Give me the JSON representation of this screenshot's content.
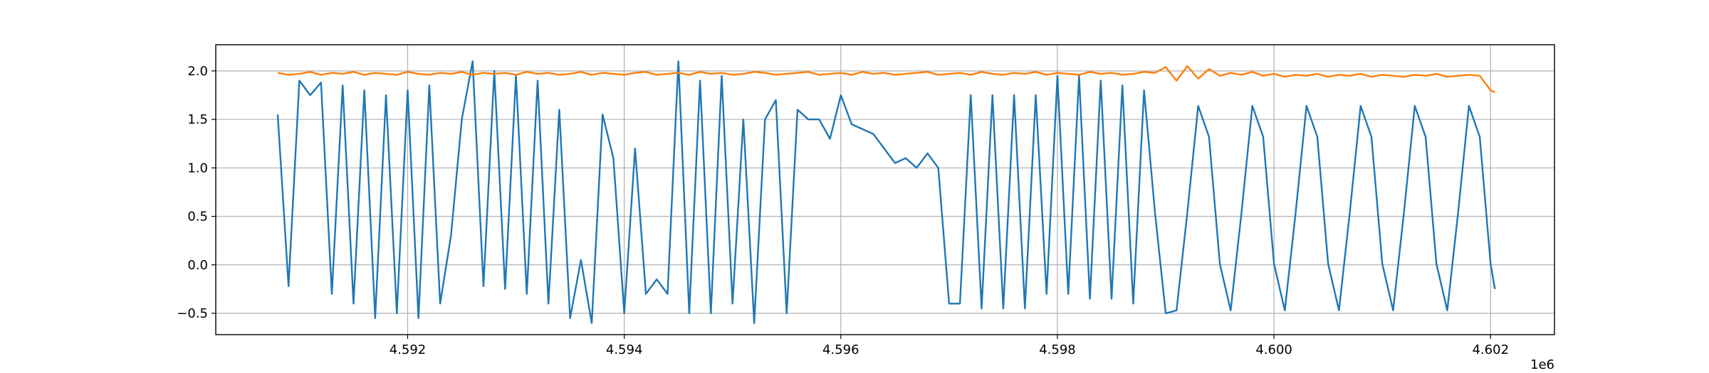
{
  "chart_data": {
    "type": "line",
    "x": [
      4590800,
      4590900,
      4591000,
      4591100,
      4591200,
      4591300,
      4591400,
      4591500,
      4591600,
      4591700,
      4591800,
      4591900,
      4592000,
      4592100,
      4592200,
      4592300,
      4592400,
      4592500,
      4592600,
      4592700,
      4592800,
      4592900,
      4593000,
      4593100,
      4593200,
      4593300,
      4593400,
      4593500,
      4593600,
      4593700,
      4593800,
      4593900,
      4594000,
      4594100,
      4594200,
      4594300,
      4594400,
      4594500,
      4594600,
      4594700,
      4594800,
      4594900,
      4595000,
      4595100,
      4595200,
      4595300,
      4595400,
      4595500,
      4595600,
      4595700,
      4595800,
      4595900,
      4596000,
      4596100,
      4596200,
      4596300,
      4596400,
      4596500,
      4596600,
      4596700,
      4596800,
      4596900,
      4597000,
      4597100,
      4597200,
      4597300,
      4597400,
      4597500,
      4597600,
      4597700,
      4597800,
      4597900,
      4598000,
      4598100,
      4598200,
      4598300,
      4598400,
      4598500,
      4598600,
      4598700,
      4598800,
      4598900,
      4599000,
      4599100,
      4599200,
      4599300,
      4599400,
      4599500,
      4599600,
      4599700,
      4599800,
      4599900,
      4600000,
      4600100,
      4600200,
      4600300,
      4600400,
      4600500,
      4600600,
      4600700,
      4600800,
      4600900,
      4601000,
      4601100,
      4601200,
      4601300,
      4601400,
      4601500,
      4601600,
      4601700,
      4601800,
      4601900,
      4602000,
      4602040
    ],
    "series": [
      {
        "color": "#1f77b4",
        "values": [
          1.55,
          -0.22,
          1.9,
          1.75,
          1.88,
          -0.3,
          1.85,
          -0.4,
          1.8,
          -0.55,
          1.75,
          -0.5,
          1.8,
          -0.55,
          1.85,
          -0.4,
          0.3,
          1.5,
          2.1,
          -0.22,
          2.0,
          -0.25,
          1.95,
          -0.3,
          1.9,
          -0.4,
          1.6,
          -0.55,
          0.05,
          -0.6,
          1.55,
          1.1,
          -0.5,
          1.2,
          -0.3,
          -0.15,
          -0.3,
          2.1,
          -0.5,
          1.9,
          -0.5,
          1.95,
          -0.4,
          1.5,
          -0.6,
          1.5,
          1.7,
          -0.5,
          1.6,
          1.5,
          1.5,
          1.3,
          1.75,
          1.45,
          1.4,
          1.35,
          1.2,
          1.05,
          1.1,
          1.0,
          1.15,
          1.0,
          -0.4,
          -0.4,
          1.75,
          -0.45,
          1.75,
          -0.45,
          1.75,
          -0.45,
          1.75,
          -0.3,
          1.95,
          -0.3,
          1.95,
          -0.35,
          1.9,
          -0.35,
          1.85,
          -0.4,
          1.8,
          0.55,
          -0.5,
          -0.47,
          0.54,
          1.64,
          1.32,
          0.01,
          -0.47,
          0.54,
          1.64,
          1.32,
          0.01,
          -0.47,
          0.54,
          1.64,
          1.32,
          0.01,
          -0.47,
          0.54,
          1.64,
          1.32,
          0.01,
          -0.47,
          0.54,
          1.64,
          1.32,
          0.01,
          -0.47,
          0.54,
          1.64,
          1.32,
          0.01,
          -0.25
        ]
      },
      {
        "color": "#ff7f0e",
        "values": [
          1.98,
          1.96,
          1.97,
          1.99,
          1.96,
          1.98,
          1.97,
          1.99,
          1.96,
          1.98,
          1.97,
          1.96,
          1.99,
          1.97,
          1.96,
          1.98,
          1.97,
          1.99,
          1.96,
          1.98,
          1.97,
          1.98,
          1.96,
          1.99,
          1.97,
          1.98,
          1.96,
          1.97,
          1.99,
          1.96,
          1.98,
          1.97,
          1.96,
          1.98,
          1.99,
          1.96,
          1.97,
          1.98,
          1.96,
          1.99,
          1.97,
          1.98,
          1.96,
          1.97,
          1.99,
          1.98,
          1.96,
          1.97,
          1.98,
          1.99,
          1.96,
          1.97,
          1.98,
          1.96,
          1.99,
          1.97,
          1.98,
          1.96,
          1.97,
          1.98,
          1.99,
          1.96,
          1.97,
          1.98,
          1.96,
          1.99,
          1.97,
          1.96,
          1.98,
          1.97,
          1.99,
          1.96,
          1.98,
          1.97,
          1.96,
          1.99,
          1.97,
          1.98,
          1.96,
          1.97,
          1.99,
          1.98,
          2.04,
          1.9,
          2.05,
          1.92,
          2.02,
          1.95,
          1.98,
          1.96,
          1.99,
          1.95,
          1.97,
          1.94,
          1.96,
          1.95,
          1.97,
          1.94,
          1.96,
          1.95,
          1.97,
          1.94,
          1.96,
          1.95,
          1.94,
          1.96,
          1.95,
          1.97,
          1.94,
          1.95,
          1.96,
          1.95,
          1.8,
          1.78
        ]
      }
    ],
    "xlim": [
      4590228,
      4602590
    ],
    "ylim": [
      -0.72,
      2.27
    ],
    "xticks": [
      {
        "value": 4592000,
        "label": "4.592"
      },
      {
        "value": 4594000,
        "label": "4.594"
      },
      {
        "value": 4596000,
        "label": "4.596"
      },
      {
        "value": 4598000,
        "label": "4.598"
      },
      {
        "value": 4600000,
        "label": "4.600"
      },
      {
        "value": 4602000,
        "label": "4.602"
      }
    ],
    "yticks": [
      {
        "value": -0.5,
        "label": "−0.5"
      },
      {
        "value": 0,
        "label": "0.0"
      },
      {
        "value": 0.5,
        "label": "0.5"
      },
      {
        "value": 1,
        "label": "1.0"
      },
      {
        "value": 1.5,
        "label": "1.5"
      },
      {
        "value": 2,
        "label": "2.0"
      }
    ],
    "x_offset_label": "1e6",
    "grid": true
  }
}
